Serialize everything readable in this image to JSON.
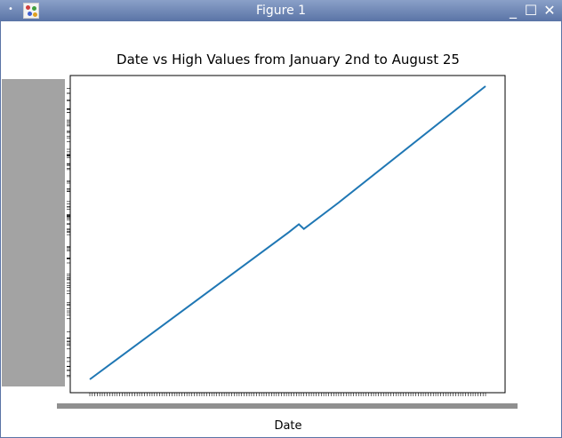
{
  "window": {
    "title": "Figure 1",
    "menu_glyph": "•",
    "app_icon": "matplotlib-figure-icon",
    "minimize_glyph": "_",
    "maximize_glyph": "☐",
    "close_glyph": "✕"
  },
  "chart_data": {
    "type": "line",
    "title": "Date vs High Values from January 2nd to August 25",
    "xlabel": "Date",
    "ylabel": "",
    "grid": false,
    "line_color": "#1f77b4",
    "x_categories_count": 160,
    "x": [
      0,
      50,
      80,
      84,
      86,
      100,
      159
    ],
    "y": [
      0,
      31.4,
      50.2,
      52.9,
      51.3,
      60.3,
      100
    ]
  }
}
